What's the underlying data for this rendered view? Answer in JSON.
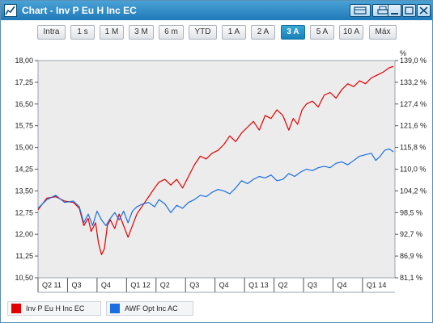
{
  "window": {
    "title": "Chart - Inv P Eu H Inc EC"
  },
  "range_buttons": [
    "Intra",
    "1 s",
    "1 M",
    "3 M",
    "6 m",
    "YTD",
    "1 A",
    "2 A",
    "3 A",
    "5 A",
    "10 A",
    "Máx"
  ],
  "active_range": "3 A",
  "colors": {
    "series1": "#e30000",
    "series2": "#1a6fe0",
    "plot_bg": "#ececec",
    "title_bar": "#1f79b8",
    "active_button": "#1880b8"
  },
  "icons": {
    "app": "line-chart-icon",
    "buttons": [
      "restore-layout-icon",
      "print-icon",
      "minimize-icon",
      "maximize-icon",
      "close-icon"
    ]
  },
  "chart_data": {
    "type": "line",
    "xlabel": "",
    "ylabel_left": "",
    "ylabel_right": "%",
    "ylim_left": [
      10.5,
      18.0
    ],
    "ylim_right": [
      81.1,
      139.0
    ],
    "left_ticks": [
      "18,00",
      "17,25",
      "16,50",
      "15,75",
      "15,00",
      "14,25",
      "13,50",
      "12,75",
      "12,00",
      "11,25",
      "10,50"
    ],
    "right_ticks": [
      "139,0 %",
      "133,2 %",
      "127,4 %",
      "121,6 %",
      "115,8 %",
      "110,0 %",
      "104,2 %",
      "98,5 %",
      "92,7 %",
      "86,9 %",
      "81,1 %"
    ],
    "x_ticks": [
      "Q2 11",
      "Q3",
      "Q4",
      "Q1 12",
      "Q2",
      "Q3",
      "Q4",
      "Q1 13",
      "Q2",
      "Q3",
      "Q4",
      "Q1 14"
    ],
    "x_range": [
      0,
      12.1
    ],
    "grid": false,
    "legend_placement": "bottom-left",
    "series": [
      {
        "name": "Inv P Eu H Inc EC",
        "axis": "left",
        "x": [
          0,
          0.3,
          0.6,
          0.9,
          1.2,
          1.4,
          1.55,
          1.7,
          1.8,
          1.95,
          2.05,
          2.15,
          2.25,
          2.35,
          2.45,
          2.6,
          2.75,
          2.9,
          3.05,
          3.2,
          3.35,
          3.55,
          3.75,
          3.95,
          4.1,
          4.3,
          4.5,
          4.7,
          4.9,
          5.1,
          5.3,
          5.5,
          5.7,
          5.9,
          6.1,
          6.3,
          6.5,
          6.7,
          6.9,
          7.1,
          7.3,
          7.5,
          7.7,
          7.9,
          8.1,
          8.3,
          8.5,
          8.65,
          8.8,
          8.95,
          9.1,
          9.3,
          9.5,
          9.7,
          9.9,
          10.1,
          10.3,
          10.5,
          10.7,
          10.9,
          11.1,
          11.3,
          11.5,
          11.7,
          11.9,
          12.05
        ],
        "y": [
          12.85,
          13.25,
          13.3,
          13.15,
          13.1,
          12.9,
          12.3,
          12.55,
          12.1,
          12.4,
          11.7,
          11.3,
          11.5,
          12.3,
          12.5,
          12.2,
          12.7,
          12.3,
          11.9,
          12.3,
          12.7,
          13.0,
          13.3,
          13.6,
          13.8,
          13.9,
          13.7,
          13.9,
          13.6,
          14.0,
          14.4,
          14.7,
          14.6,
          14.8,
          14.9,
          15.1,
          15.4,
          15.2,
          15.5,
          15.7,
          15.9,
          15.6,
          16.1,
          16.0,
          16.3,
          16.1,
          15.6,
          16.0,
          15.8,
          16.3,
          16.5,
          16.6,
          16.4,
          16.8,
          16.9,
          16.7,
          17.0,
          17.2,
          17.1,
          17.3,
          17.2,
          17.4,
          17.5,
          17.6,
          17.75,
          17.8
        ]
      },
      {
        "name": "AWF Opt Inc AC",
        "axis": "left",
        "x": [
          0,
          0.3,
          0.6,
          0.9,
          1.2,
          1.4,
          1.55,
          1.7,
          1.85,
          2.0,
          2.15,
          2.3,
          2.45,
          2.6,
          2.75,
          2.9,
          3.05,
          3.2,
          3.35,
          3.55,
          3.75,
          3.95,
          4.1,
          4.3,
          4.5,
          4.7,
          4.9,
          5.1,
          5.3,
          5.5,
          5.7,
          5.9,
          6.1,
          6.3,
          6.5,
          6.7,
          6.9,
          7.1,
          7.3,
          7.5,
          7.7,
          7.9,
          8.1,
          8.3,
          8.5,
          8.7,
          8.9,
          9.1,
          9.3,
          9.5,
          9.7,
          9.9,
          10.1,
          10.3,
          10.5,
          10.7,
          10.9,
          11.1,
          11.3,
          11.45,
          11.6,
          11.75,
          11.9,
          12.05
        ],
        "y": [
          12.9,
          13.2,
          13.35,
          13.1,
          13.15,
          12.95,
          12.4,
          12.7,
          12.3,
          12.8,
          12.5,
          12.3,
          12.55,
          12.75,
          12.5,
          12.8,
          12.4,
          12.8,
          12.95,
          13.05,
          13.1,
          12.95,
          13.2,
          13.05,
          12.75,
          13.0,
          12.9,
          13.1,
          13.2,
          13.35,
          13.3,
          13.45,
          13.55,
          13.5,
          13.4,
          13.6,
          13.85,
          13.75,
          13.9,
          14.0,
          13.95,
          14.05,
          13.85,
          13.9,
          14.1,
          14.0,
          14.15,
          14.25,
          14.2,
          14.3,
          14.35,
          14.3,
          14.45,
          14.5,
          14.4,
          14.55,
          14.7,
          14.75,
          14.8,
          14.55,
          14.7,
          14.9,
          14.95,
          14.85
        ]
      }
    ]
  }
}
